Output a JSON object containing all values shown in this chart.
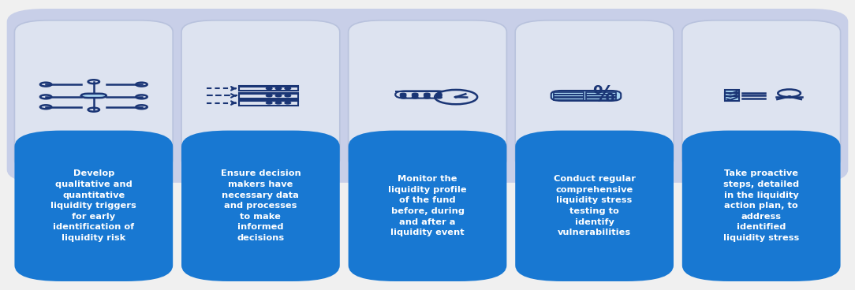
{
  "background_color": "#f0f0f0",
  "top_panel_color": "#c8cfe8",
  "card_color": "#1878d2",
  "card_text_color": "#ffffff",
  "icon_bg_color": "#dde3f0",
  "icon_border_color": "#b8c2dd",
  "figsize": [
    10.84,
    3.68
  ],
  "dpi": 100,
  "n_cols": 5,
  "card_fontsize": 8.2,
  "icon_dark_color": "#1a3575",
  "icon_light_color": "#a8d4f0",
  "cards": [
    {
      "text": "Develop\nqualitative and\nquantitative\nliquidity triggers\nfor early\nidentification of\nliquidity risk"
    },
    {
      "text": "Ensure decision\nmakers have\nnecessary data\nand processes\nto make\ninformed\ndecisions"
    },
    {
      "text": "Monitor the\nliquidity profile\nof the fund\nbefore, during\nand after a\nliquidity event"
    },
    {
      "text": "Conduct regular\ncomprehensive\nliquidity stress\ntesting to\nidentify\nvulnerabilities"
    },
    {
      "text": "Take proactive\nsteps, detailed\nin the liquidity\naction plan, to\naddress\nidentified\nliquidity stress"
    }
  ]
}
